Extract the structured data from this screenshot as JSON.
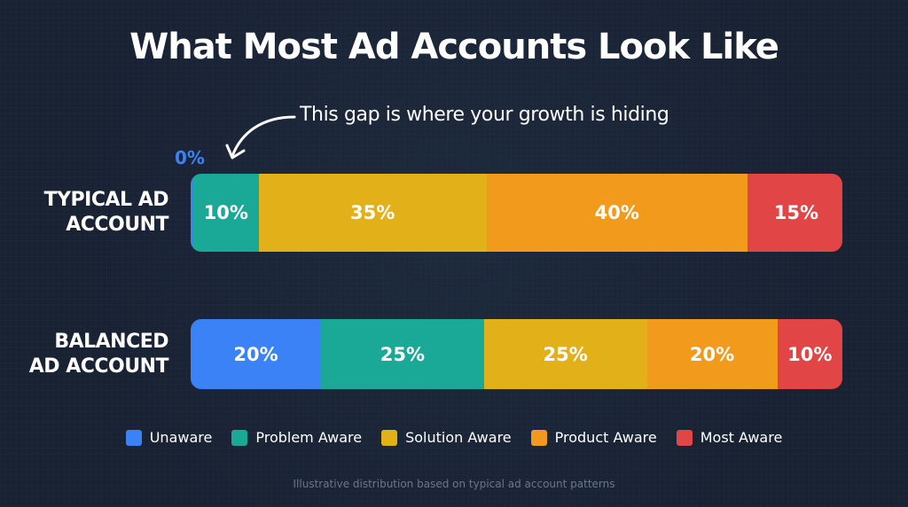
{
  "chart_data": {
    "type": "bar",
    "orientation": "horizontal-stacked-100",
    "title": "What Most Ad Accounts Look Like",
    "annotation": "This gap is where your growth is hiding",
    "zero_label": "0%",
    "categories": [
      [
        "TYPICAL AD",
        "ACCOUNT"
      ],
      [
        "BALANCED",
        "AD ACCOUNT"
      ]
    ],
    "series": [
      {
        "name": "Unaware",
        "color": "#3b82f6",
        "values": [
          0,
          20
        ]
      },
      {
        "name": "Problem Aware",
        "color": "#1aa897",
        "values": [
          10,
          25
        ]
      },
      {
        "name": "Solution Aware",
        "color": "#e2b019",
        "values": [
          35,
          25
        ]
      },
      {
        "name": "Product Aware",
        "color": "#f29a1c",
        "values": [
          40,
          20
        ]
      },
      {
        "name": "Most Aware",
        "color": "#e24545",
        "values": [
          15,
          10
        ]
      }
    ],
    "value_suffix": "%",
    "legend_position": "bottom",
    "grid": false,
    "footnote": "Illustrative distribution based on typical ad account patterns"
  }
}
